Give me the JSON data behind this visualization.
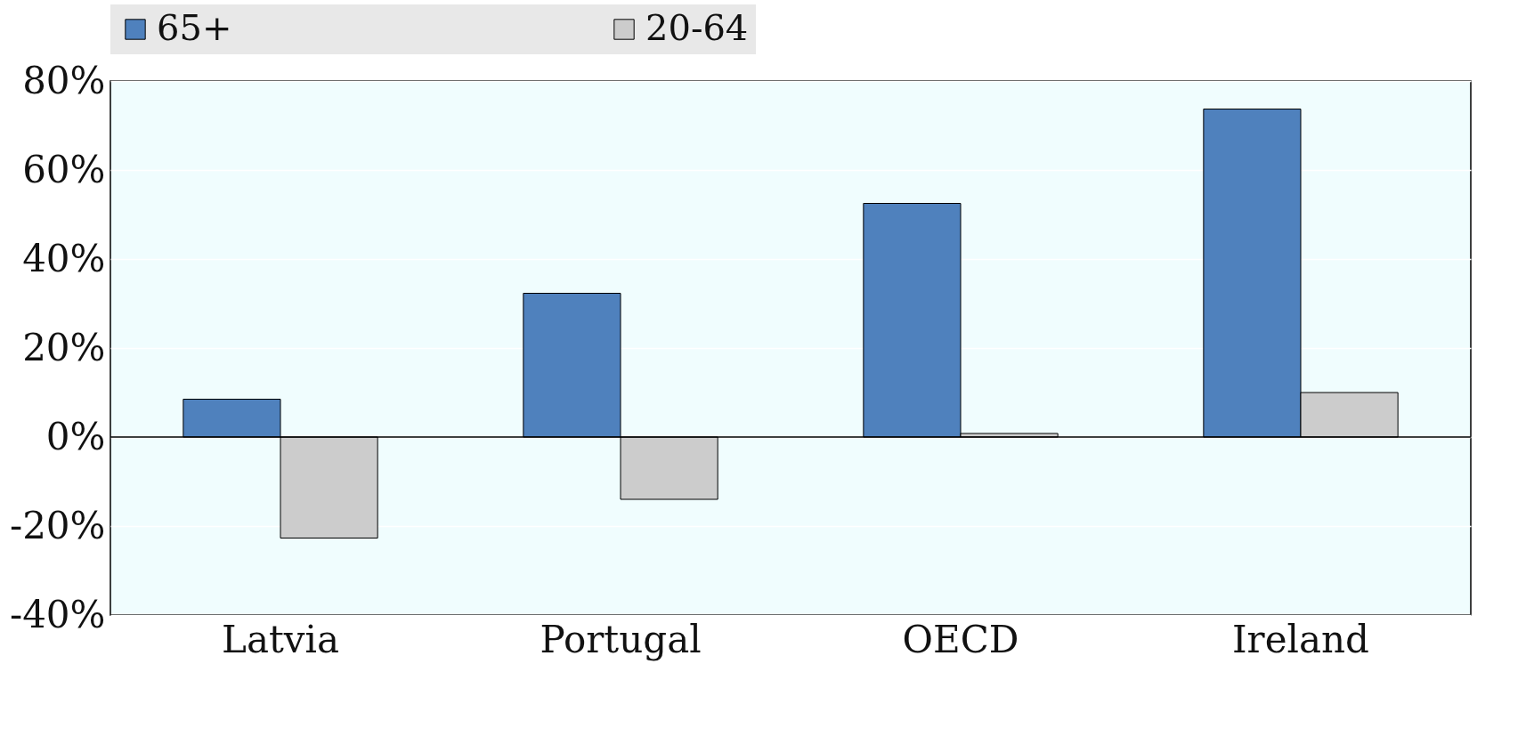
{
  "chart_data": {
    "type": "bar",
    "categories": [
      "Latvia",
      "Portugal",
      "OECD",
      "Ireland"
    ],
    "series": [
      {
        "name": "65+",
        "color": "#4f81bd",
        "values": [
          8.5,
          32.3,
          52.5,
          73.7
        ]
      },
      {
        "name": "20-64",
        "color": "#cccccc",
        "values": [
          -22.7,
          -14,
          0.8,
          10
        ]
      }
    ],
    "ylim": [
      -40,
      80
    ],
    "yticks": [
      {
        "value": -40,
        "label": "-40%"
      },
      {
        "value": -20,
        "label": "-20%"
      },
      {
        "value": 0,
        "label": "0%"
      },
      {
        "value": 20,
        "label": "20%"
      },
      {
        "value": 40,
        "label": "40%"
      },
      {
        "value": 60,
        "label": "60%"
      },
      {
        "value": 80,
        "label": "80%"
      }
    ],
    "grid": "y",
    "legend": "top"
  }
}
